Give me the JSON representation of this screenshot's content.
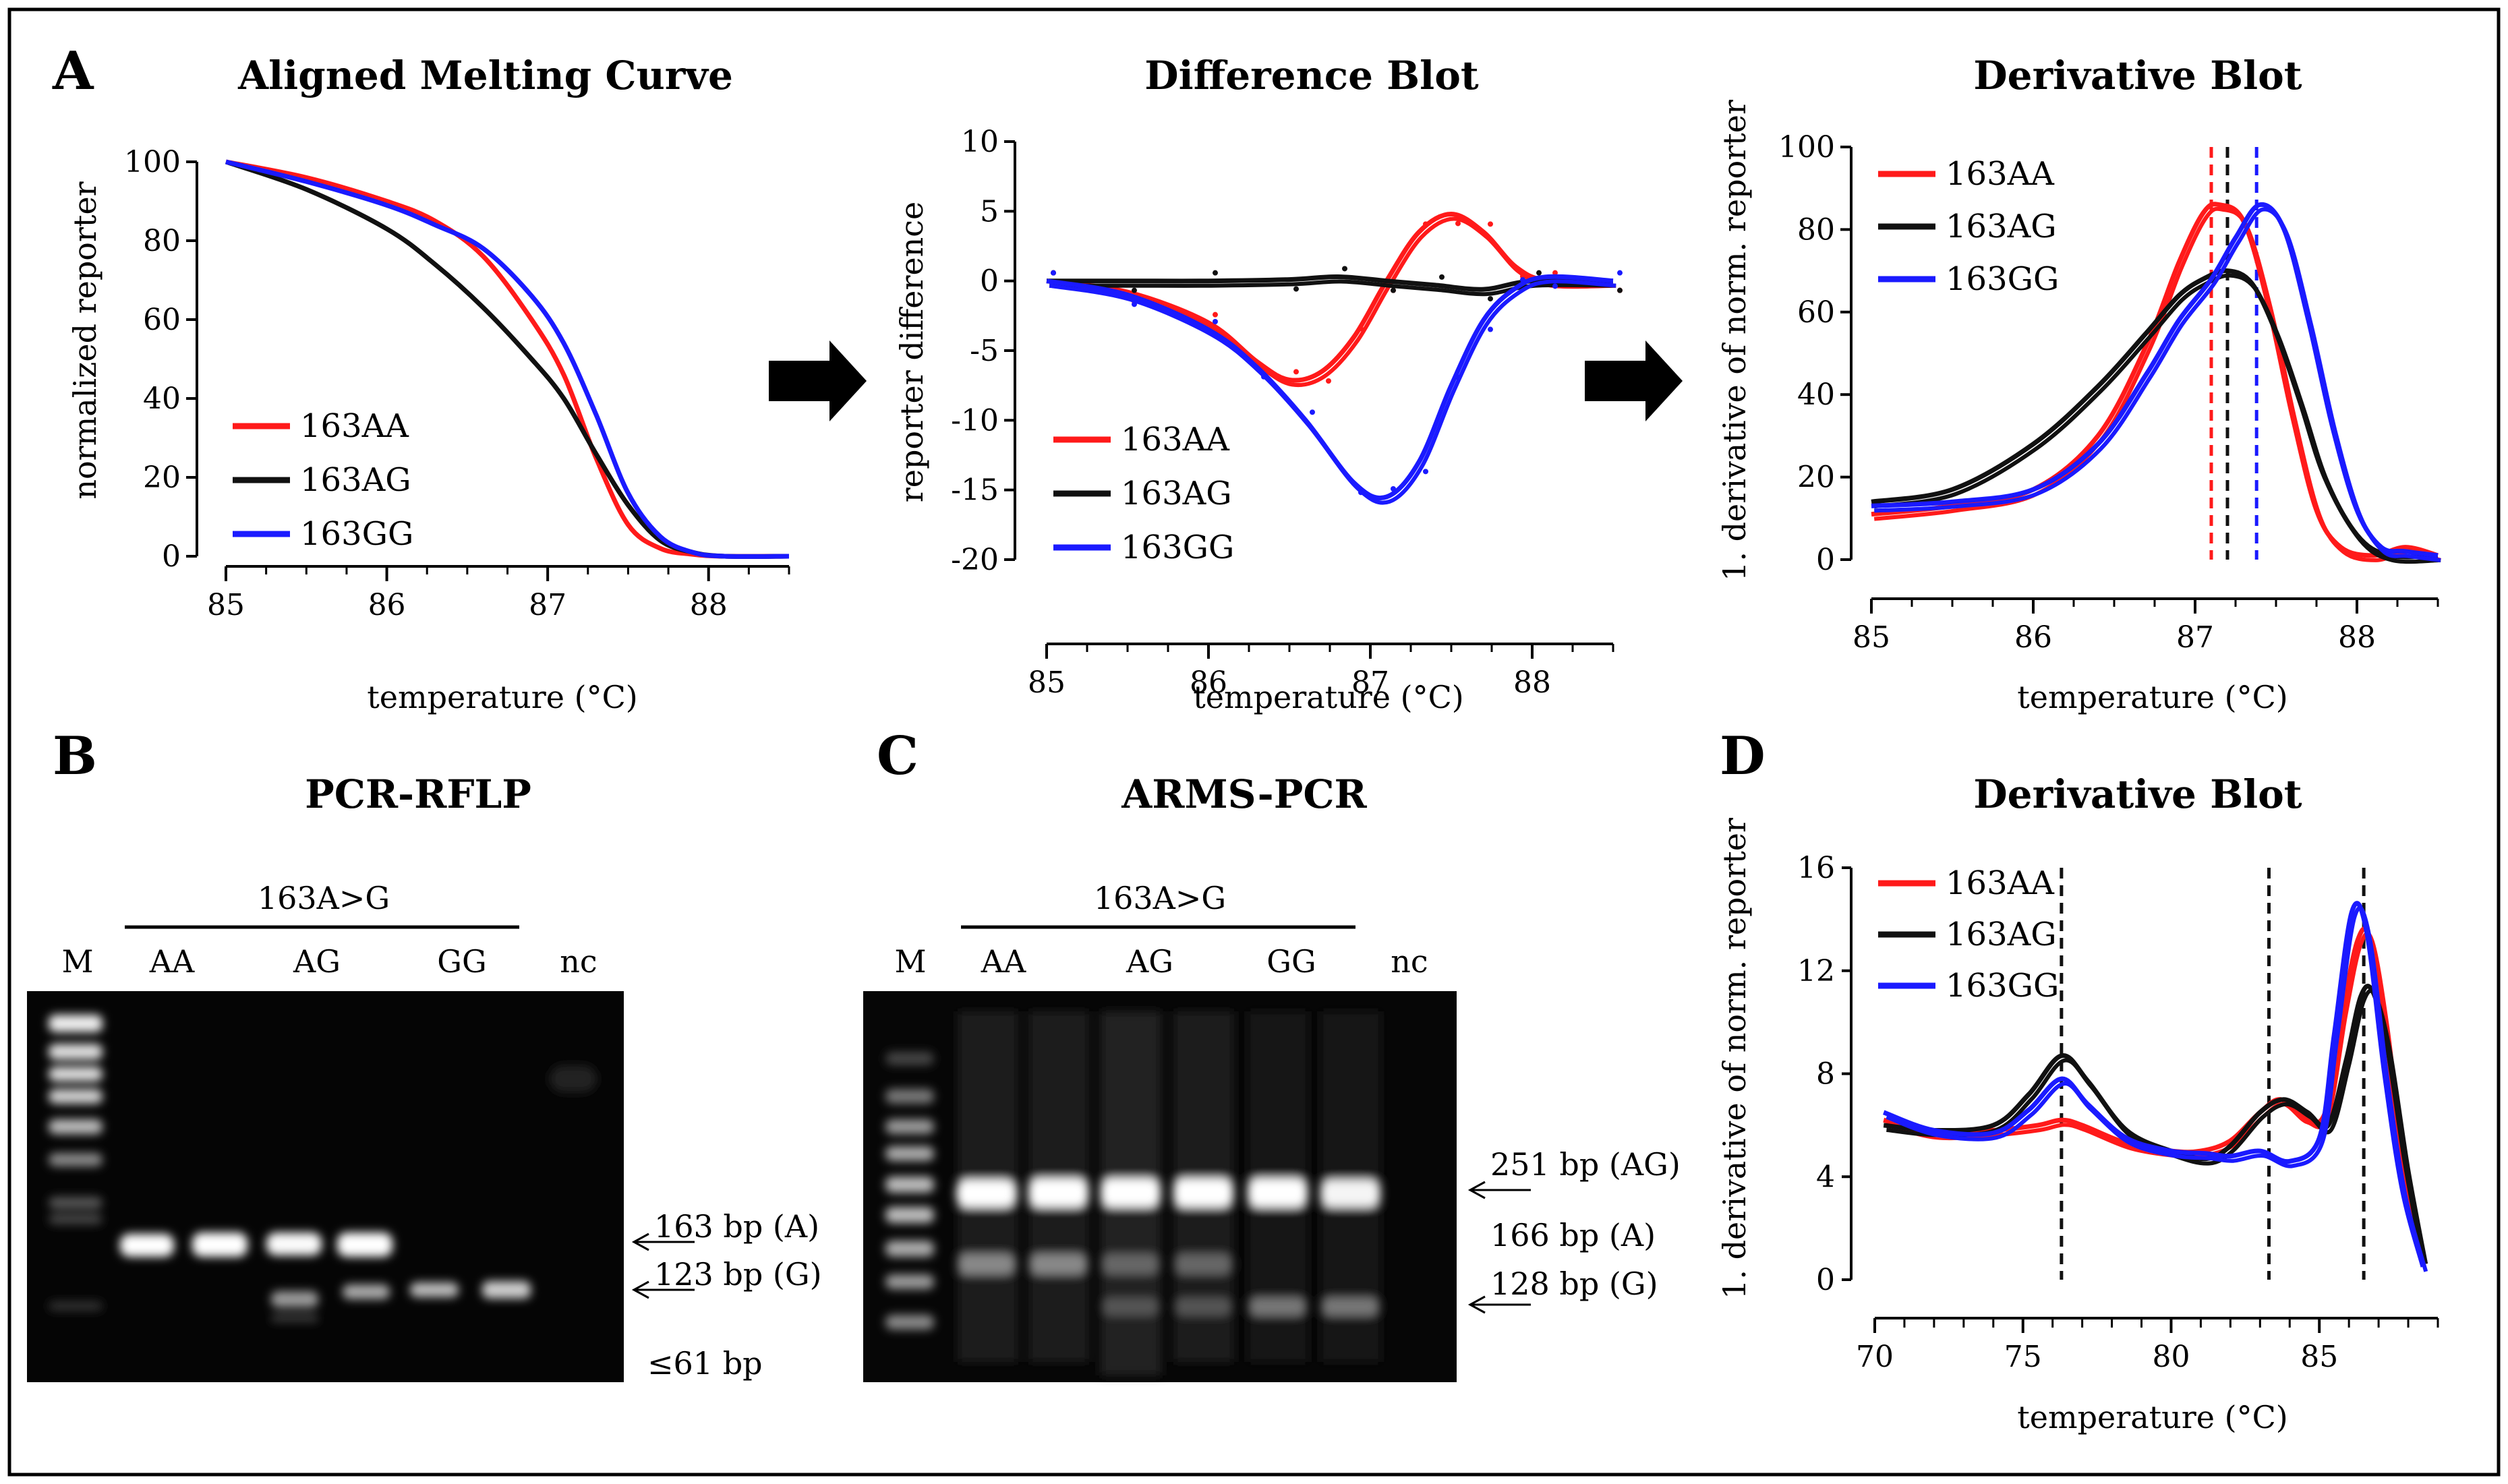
{
  "colors": {
    "AA": "#ff1a1a",
    "AG": "#111111",
    "GG": "#1a1aff"
  },
  "panel_labels": {
    "A": "A",
    "B": "B",
    "C": "C",
    "D": "D"
  },
  "chart_data": [
    {
      "id": "melting",
      "type": "line",
      "title": "Aligned Melting Curve",
      "xlabel": "temperature (°C)",
      "ylabel": "normalized reporter",
      "xlim": [
        85,
        88.5
      ],
      "ylim": [
        0,
        100
      ],
      "xticks": [
        85,
        86,
        87,
        88
      ],
      "yticks": [
        0,
        20,
        40,
        60,
        80,
        100
      ],
      "legend": "bottom-left",
      "series": [
        {
          "name": "163AA",
          "key": "AA",
          "x": [
            85,
            85.5,
            86,
            86.3,
            86.6,
            86.9,
            87.1,
            87.3,
            87.5,
            87.7,
            87.9,
            88.1,
            88.5
          ],
          "values": [
            100,
            96,
            90,
            85,
            76,
            60,
            46,
            25,
            8,
            2,
            0.5,
            0,
            0
          ]
        },
        {
          "name": "163AG",
          "key": "AG",
          "x": [
            85,
            85.5,
            86,
            86.3,
            86.6,
            86.9,
            87.1,
            87.3,
            87.5,
            87.7,
            87.9,
            88.1,
            88.5
          ],
          "values": [
            100,
            93,
            83,
            74,
            63,
            50,
            40,
            26,
            13,
            4,
            1,
            0,
            0
          ]
        },
        {
          "name": "163GG",
          "key": "GG",
          "x": [
            85,
            85.5,
            86,
            86.3,
            86.6,
            86.9,
            87.1,
            87.3,
            87.5,
            87.7,
            87.9,
            88.1,
            88.5
          ],
          "values": [
            100,
            95,
            89,
            84,
            78,
            66,
            54,
            36,
            16,
            5,
            1,
            0,
            0
          ]
        }
      ]
    },
    {
      "id": "difference",
      "type": "line",
      "title": "Difference Blot",
      "xlabel": "temperature (°C)",
      "ylabel": "reporter difference",
      "xlim": [
        85,
        88.5
      ],
      "ylim": [
        -20,
        10
      ],
      "xticks": [
        85,
        86,
        87,
        88
      ],
      "yticks": [
        -20,
        -15,
        -10,
        -5,
        0,
        5,
        10
      ],
      "legend": "bottom-left",
      "series": [
        {
          "name": "163AA",
          "key": "AA",
          "x": [
            85,
            85.5,
            86,
            86.3,
            86.5,
            86.7,
            86.9,
            87.1,
            87.3,
            87.5,
            87.7,
            87.9,
            88.1,
            88.5
          ],
          "values": [
            0,
            -0.8,
            -3,
            -5.8,
            -7.1,
            -6.5,
            -4,
            0,
            3.5,
            4.8,
            3.5,
            1,
            0,
            0
          ]
        },
        {
          "name": "163AG",
          "key": "AG",
          "x": [
            85,
            85.5,
            86,
            86.5,
            86.8,
            87.1,
            87.4,
            87.7,
            88,
            88.5
          ],
          "values": [
            0,
            0,
            0,
            0.1,
            0.3,
            0,
            -0.3,
            -0.6,
            0,
            0
          ]
        },
        {
          "name": "163GG",
          "key": "GG",
          "x": [
            85,
            85.5,
            86,
            86.3,
            86.6,
            86.9,
            87.1,
            87.3,
            87.5,
            87.7,
            87.9,
            88.1,
            88.5
          ],
          "values": [
            0,
            -1,
            -3.5,
            -6.2,
            -10,
            -14.5,
            -15.5,
            -13,
            -7.5,
            -2.8,
            -0.5,
            0.3,
            0
          ]
        }
      ]
    },
    {
      "id": "derivative",
      "type": "line",
      "title": "Derivative Blot",
      "xlabel": "temperature (°C)",
      "ylabel": "1. derivative of norm. reporter",
      "xlim": [
        85,
        88.5
      ],
      "ylim": [
        0,
        100
      ],
      "xticks": [
        85,
        86,
        87,
        88
      ],
      "yticks": [
        0,
        20,
        40,
        60,
        80,
        100
      ],
      "legend": "top-left",
      "vlines": [
        {
          "x": 87.1,
          "key": "AA"
        },
        {
          "x": 87.2,
          "key": "AG"
        },
        {
          "x": 87.38,
          "key": "GG"
        }
      ],
      "series": [
        {
          "name": "163AA",
          "key": "AA",
          "x": [
            85,
            85.5,
            86,
            86.4,
            86.7,
            86.9,
            87.05,
            87.15,
            87.3,
            87.45,
            87.6,
            87.75,
            87.9,
            88.1,
            88.3,
            88.5
          ],
          "values": [
            11,
            13,
            17,
            30,
            52,
            72,
            84,
            86,
            82,
            62,
            35,
            12,
            3,
            1,
            3,
            1
          ]
        },
        {
          "name": "163AG",
          "key": "AG",
          "x": [
            85,
            85.5,
            86,
            86.4,
            86.7,
            86.9,
            87.05,
            87.2,
            87.35,
            87.5,
            87.65,
            87.8,
            88,
            88.2,
            88.5
          ],
          "values": [
            14,
            17,
            28,
            42,
            55,
            64,
            68,
            70,
            67,
            55,
            38,
            20,
            6,
            1,
            1
          ]
        },
        {
          "name": "163GG",
          "key": "GG",
          "x": [
            85,
            85.5,
            86,
            86.4,
            86.7,
            86.9,
            87.1,
            87.25,
            87.4,
            87.55,
            87.7,
            87.85,
            88,
            88.15,
            88.3,
            88.5
          ],
          "values": [
            13,
            14,
            17,
            28,
            45,
            58,
            68,
            78,
            86,
            80,
            58,
            32,
            12,
            3,
            2,
            1
          ]
        }
      ]
    },
    {
      "id": "derivative_d",
      "type": "line",
      "title": "Derivative Blot",
      "xlabel": "temperature (°C)",
      "ylabel": "1. derivative of norm. reporter",
      "xlim": [
        70,
        89
      ],
      "ylim": [
        0,
        16
      ],
      "xticks": [
        70,
        75,
        80,
        85
      ],
      "yticks": [
        0,
        4,
        8,
        12,
        16
      ],
      "legend": "top-left",
      "vlines": [
        {
          "x": 76.3,
          "key": "AG"
        },
        {
          "x": 83.3,
          "key": "AG"
        },
        {
          "x": 86.5,
          "key": "AG"
        }
      ],
      "series": [
        {
          "name": "163AA",
          "key": "AA",
          "x": [
            70.3,
            72,
            74,
            75.5,
            76.3,
            77,
            78.5,
            80,
            81,
            82,
            83,
            83.7,
            84.5,
            85.2,
            85.8,
            86.3,
            86.7,
            87.2,
            87.8,
            88.5
          ],
          "values": [
            6.2,
            5.7,
            5.8,
            6.0,
            6.2,
            6.0,
            5.3,
            5.0,
            5.0,
            5.4,
            6.5,
            7.0,
            6.3,
            6.5,
            10.5,
            13.2,
            13.3,
            10,
            4.5,
            0.8
          ]
        },
        {
          "name": "163AG",
          "key": "AG",
          "x": [
            70.3,
            72,
            74,
            75.2,
            76.3,
            77.2,
            78.5,
            80,
            81.2,
            82,
            83,
            83.8,
            84.6,
            85.3,
            85.9,
            86.4,
            86.8,
            87.3,
            87.9,
            88.5
          ],
          "values": [
            6.0,
            5.8,
            6.0,
            7.2,
            8.7,
            7.7,
            5.8,
            5.0,
            4.7,
            5.2,
            6.5,
            7.0,
            6.5,
            6.0,
            8.5,
            11,
            11.2,
            9,
            4.5,
            0.8
          ]
        },
        {
          "name": "163GG",
          "key": "GG",
          "x": [
            70.3,
            72,
            74,
            75.2,
            76.3,
            77.2,
            78.5,
            80,
            81.2,
            82,
            83,
            84,
            85,
            85.5,
            86.1,
            86.6,
            87.2,
            87.8,
            88.5
          ],
          "values": [
            6.5,
            5.8,
            5.7,
            6.6,
            7.8,
            6.8,
            5.5,
            5.0,
            4.9,
            4.8,
            5.0,
            4.6,
            5.5,
            9.5,
            14.3,
            13.5,
            8,
            3.5,
            0.5
          ]
        }
      ]
    }
  ],
  "legend_names": [
    "163AA",
    "163AG",
    "163GG"
  ],
  "gel_b": {
    "title": "PCR-RFLP",
    "group": "163A>G",
    "lanes": [
      "M",
      "AA",
      "AG",
      "GG",
      "nc"
    ],
    "bands": [
      "163 bp (A)",
      "123 bp (G)",
      "≤61 bp"
    ]
  },
  "gel_c": {
    "title": "ARMS-PCR",
    "group": "163A>G",
    "lanes": [
      "M",
      "AA",
      "AG",
      "GG",
      "nc"
    ],
    "bands": [
      "251 bp (AG)",
      "166 bp (A)",
      "128 bp (G)"
    ]
  }
}
